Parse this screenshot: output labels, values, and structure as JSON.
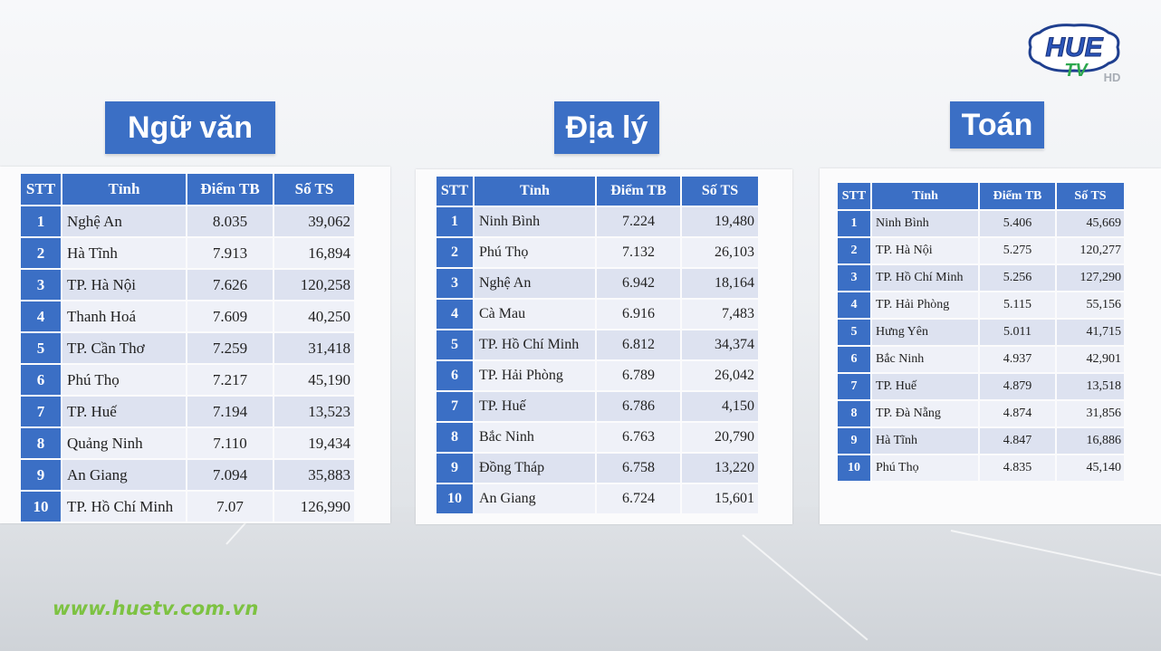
{
  "header": {
    "logo_text_top": "HUE",
    "logo_text_bottom": "TV",
    "logo_badge": "HD",
    "website": "www.huetv.com.vn"
  },
  "columns": [
    "STT",
    "Tỉnh",
    "Điểm TB",
    "Số TS"
  ],
  "tables": [
    {
      "subject": "Ngữ văn",
      "rows": [
        {
          "stt": "1",
          "province": "Nghệ An",
          "score": "8.035",
          "count": "39,062"
        },
        {
          "stt": "2",
          "province": "Hà Tĩnh",
          "score": "7.913",
          "count": "16,894"
        },
        {
          "stt": "3",
          "province": "TP. Hà Nội",
          "score": "7.626",
          "count": "120,258"
        },
        {
          "stt": "4",
          "province": "Thanh Hoá",
          "score": "7.609",
          "count": "40,250"
        },
        {
          "stt": "5",
          "province": "TP. Cần Thơ",
          "score": "7.259",
          "count": "31,418"
        },
        {
          "stt": "6",
          "province": "Phú Thọ",
          "score": "7.217",
          "count": "45,190"
        },
        {
          "stt": "7",
          "province": "TP. Huế",
          "score": "7.194",
          "count": "13,523"
        },
        {
          "stt": "8",
          "province": "Quảng Ninh",
          "score": "7.110",
          "count": "19,434"
        },
        {
          "stt": "9",
          "province": "An Giang",
          "score": "7.094",
          "count": "35,883"
        },
        {
          "stt": "10",
          "province": "TP. Hồ Chí Minh",
          "score": "7.07",
          "count": "126,990"
        }
      ]
    },
    {
      "subject": "Địa lý",
      "rows": [
        {
          "stt": "1",
          "province": "Ninh Bình",
          "score": "7.224",
          "count": "19,480"
        },
        {
          "stt": "2",
          "province": "Phú Thọ",
          "score": "7.132",
          "count": "26,103"
        },
        {
          "stt": "3",
          "province": "Nghệ An",
          "score": "6.942",
          "count": "18,164"
        },
        {
          "stt": "4",
          "province": "Cà Mau",
          "score": "6.916",
          "count": "7,483"
        },
        {
          "stt": "5",
          "province": "TP. Hồ Chí Minh",
          "score": "6.812",
          "count": "34,374"
        },
        {
          "stt": "6",
          "province": "TP. Hải Phòng",
          "score": "6.789",
          "count": "26,042"
        },
        {
          "stt": "7",
          "province": "TP. Huế",
          "score": "6.786",
          "count": "4,150"
        },
        {
          "stt": "8",
          "province": "Bắc Ninh",
          "score": "6.763",
          "count": "20,790"
        },
        {
          "stt": "9",
          "province": "Đồng Tháp",
          "score": "6.758",
          "count": "13,220"
        },
        {
          "stt": "10",
          "province": "An Giang",
          "score": "6.724",
          "count": "15,601"
        }
      ]
    },
    {
      "subject": "Toán",
      "rows": [
        {
          "stt": "1",
          "province": "Ninh Bình",
          "score": "5.406",
          "count": "45,669"
        },
        {
          "stt": "2",
          "province": "TP. Hà Nội",
          "score": "5.275",
          "count": "120,277"
        },
        {
          "stt": "3",
          "province": "TP. Hồ Chí Minh",
          "score": "5.256",
          "count": "127,290"
        },
        {
          "stt": "4",
          "province": "TP. Hải Phòng",
          "score": "5.115",
          "count": "55,156"
        },
        {
          "stt": "5",
          "province": "Hưng Yên",
          "score": "5.011",
          "count": "41,715"
        },
        {
          "stt": "6",
          "province": "Bắc Ninh",
          "score": "4.937",
          "count": "42,901"
        },
        {
          "stt": "7",
          "province": "TP. Huế",
          "score": "4.879",
          "count": "13,518"
        },
        {
          "stt": "8",
          "province": "TP. Đà Nẵng",
          "score": "4.874",
          "count": "31,856"
        },
        {
          "stt": "9",
          "province": "Hà Tĩnh",
          "score": "4.847",
          "count": "16,886"
        },
        {
          "stt": "10",
          "province": "Phú Thọ",
          "score": "4.835",
          "count": "45,140"
        }
      ]
    }
  ],
  "colors": {
    "header_blue": "#3b6fc5",
    "row_light": "#eff1f8",
    "row_dark": "#dde2f0",
    "website_green": "#7dc242"
  }
}
